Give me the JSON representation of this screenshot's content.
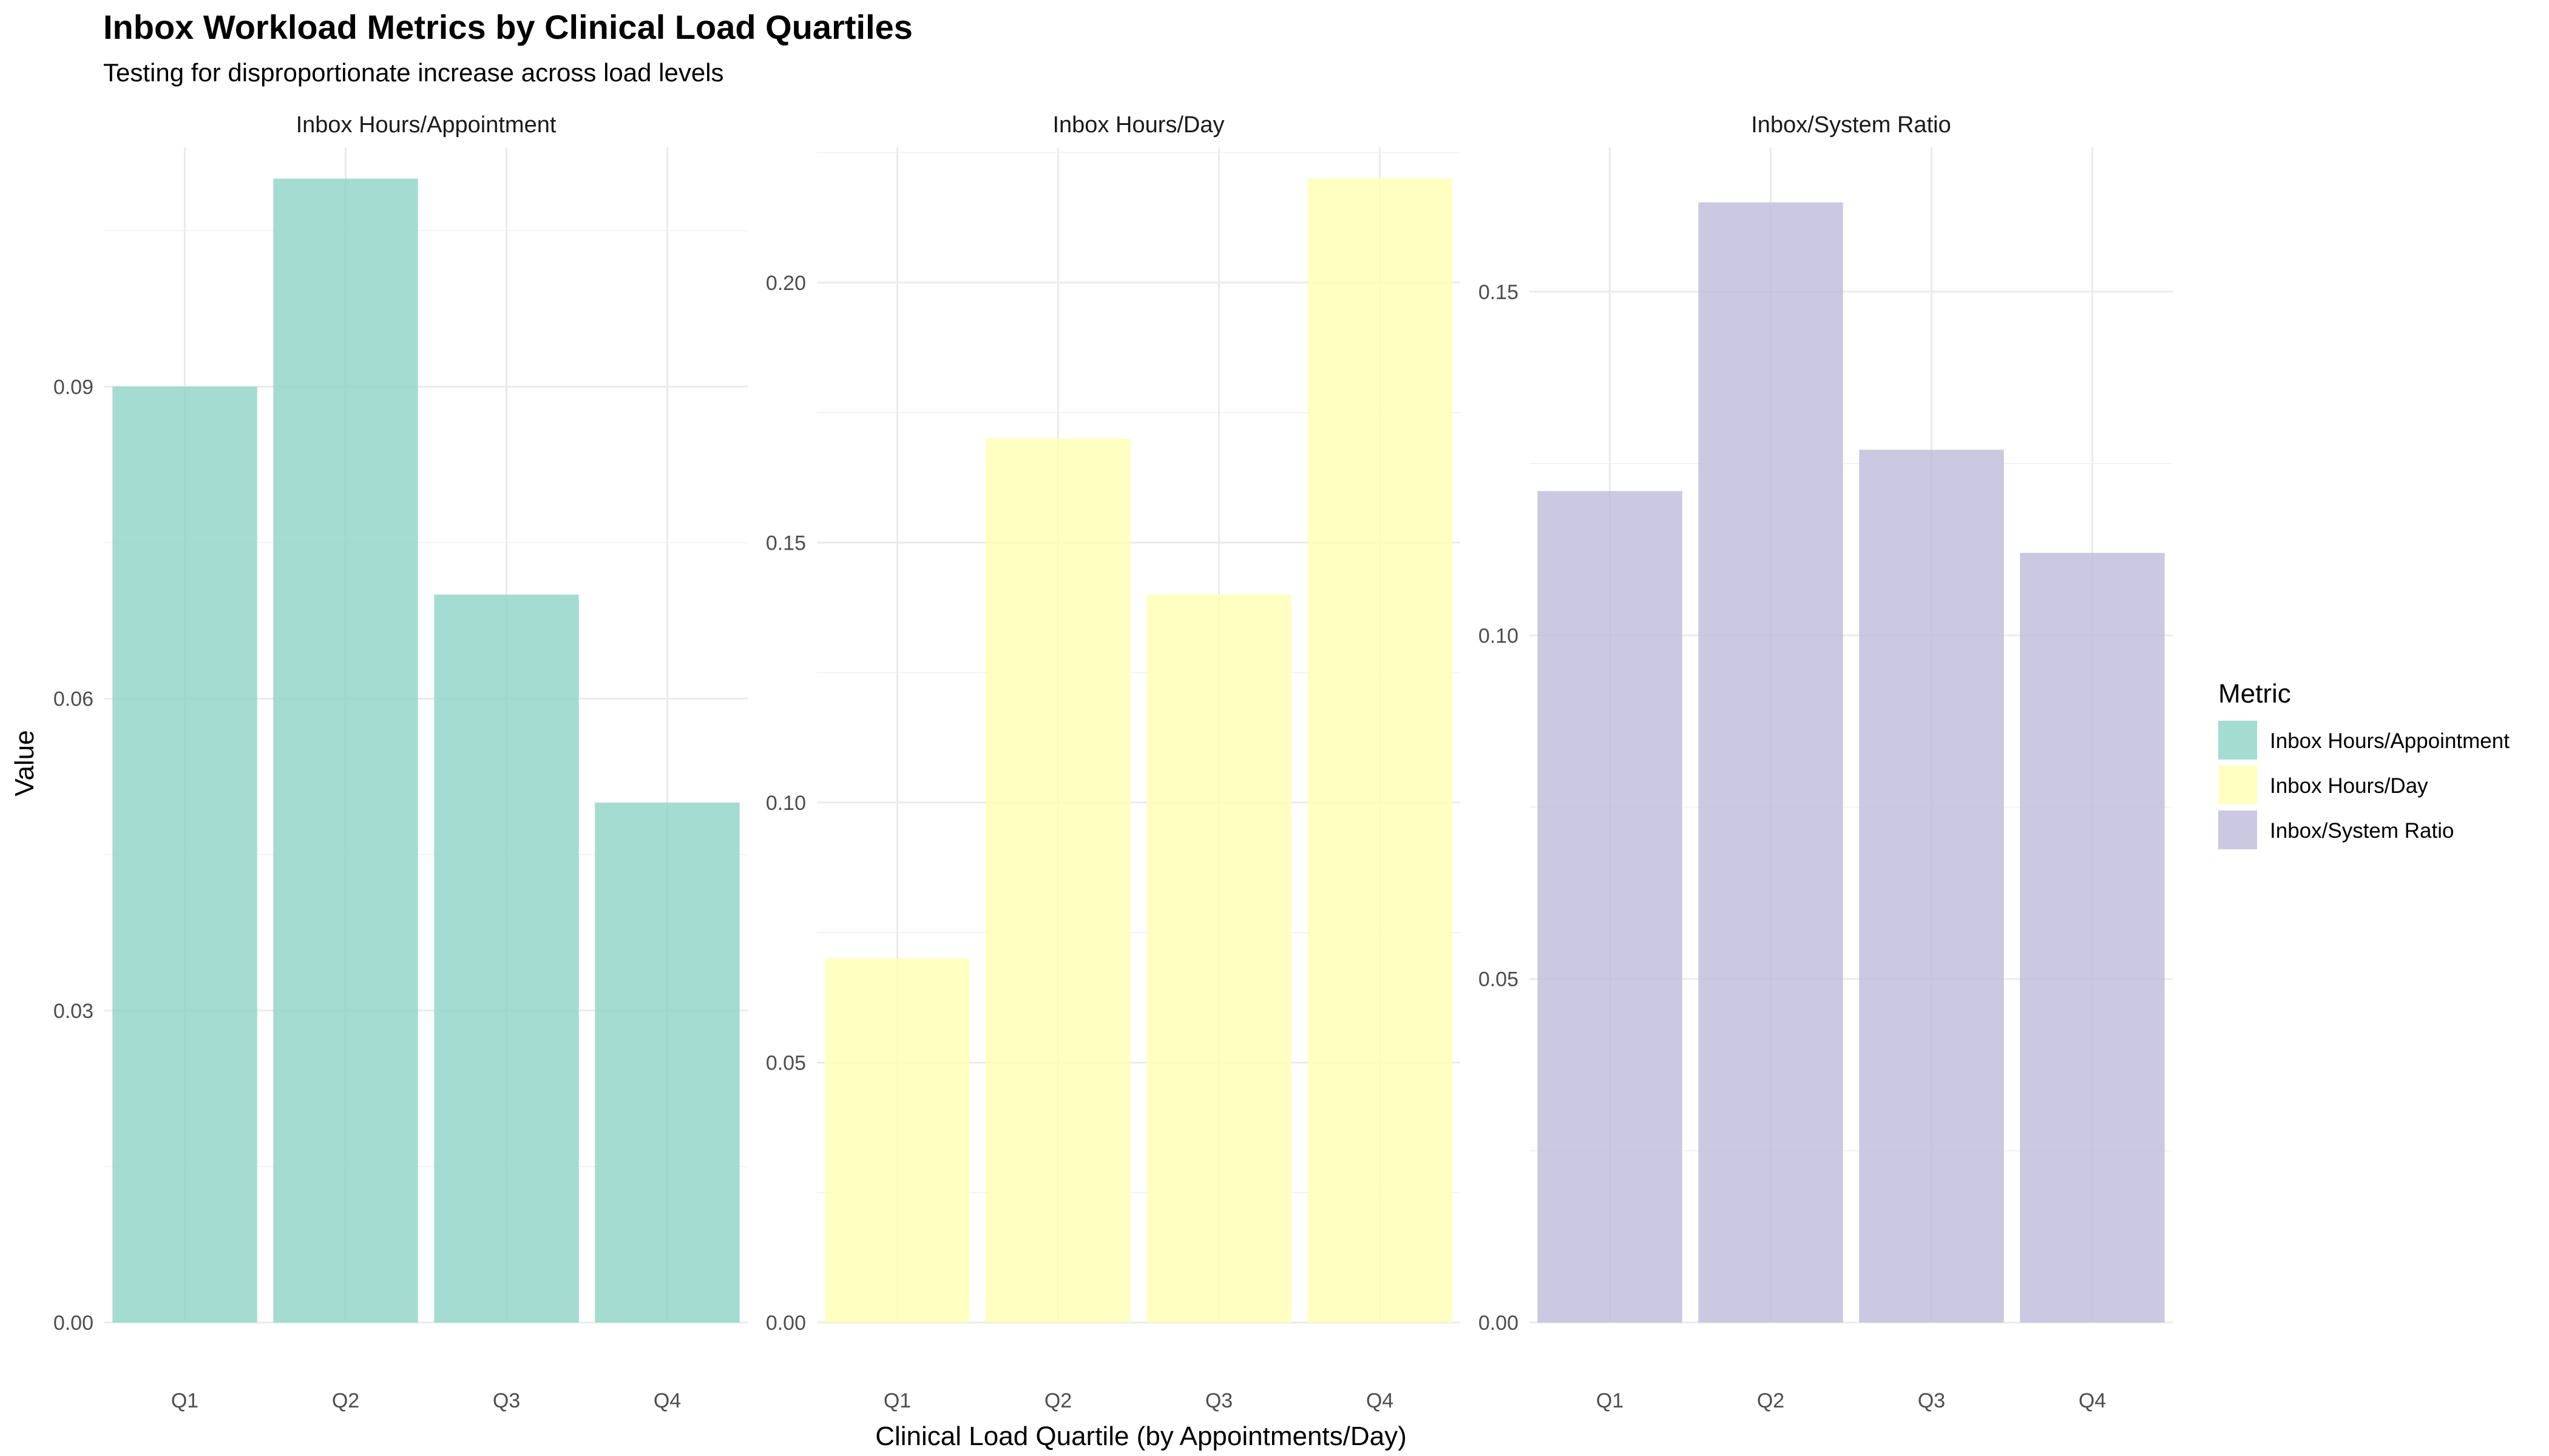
{
  "chart_data": {
    "type": "bar",
    "title": "Inbox Workload Metrics by Clinical Load Quartiles",
    "subtitle": "Testing for disproportionate increase across load levels",
    "xlabel": "Clinical Load Quartile (by Appointments/Day)",
    "ylabel": "Value",
    "categories": [
      "Q1",
      "Q2",
      "Q3",
      "Q4"
    ],
    "legend": {
      "title": "Metric",
      "position": "right"
    },
    "grid": true,
    "panels": [
      {
        "name": "Inbox Hours/Appointment",
        "color": "#8DD3C7",
        "values": [
          0.09,
          0.11,
          0.07,
          0.05
        ],
        "ylim": [
          0,
          0.113
        ],
        "yticks": [
          0.0,
          0.03,
          0.06,
          0.09
        ],
        "ytick_labels": [
          "0.00",
          "0.03",
          "0.06",
          "0.09"
        ]
      },
      {
        "name": "Inbox Hours/Day",
        "color": "#FFFFB3",
        "values": [
          0.07,
          0.17,
          0.14,
          0.22
        ],
        "ylim": [
          0,
          0.226
        ],
        "yticks": [
          0.0,
          0.05,
          0.1,
          0.15,
          0.2
        ],
        "ytick_labels": [
          "0.00",
          "0.05",
          "0.10",
          "0.15",
          "0.20"
        ]
      },
      {
        "name": "Inbox/System Ratio",
        "color": "#BEBADA",
        "values": [
          0.121,
          0.163,
          0.127,
          0.112
        ],
        "ylim": [
          0,
          0.171
        ],
        "yticks": [
          0.0,
          0.05,
          0.1,
          0.15
        ],
        "ytick_labels": [
          "0.00",
          "0.05",
          "0.10",
          "0.15"
        ]
      }
    ]
  }
}
